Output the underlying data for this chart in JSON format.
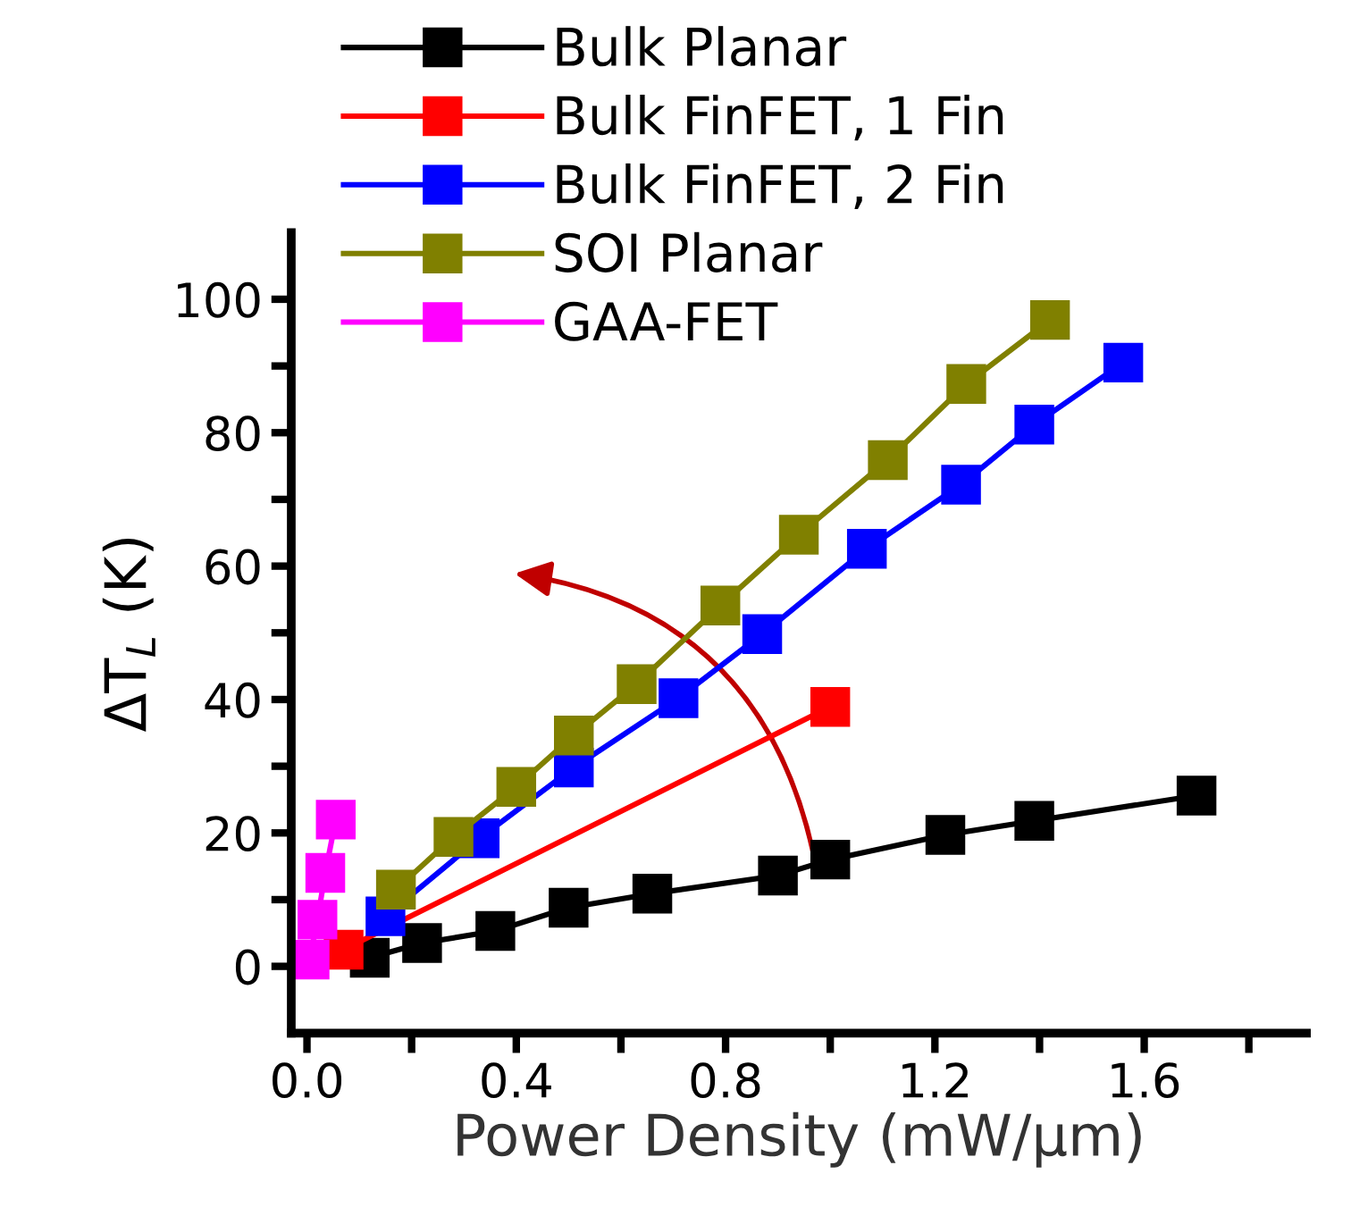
{
  "chart_data": {
    "type": "line",
    "xlabel": "Power Density (mW/μm)",
    "ylabel": "ΔT$_{L}$ (K)",
    "xlim": [
      -0.03,
      1.91
    ],
    "ylim": [
      -10,
      110
    ],
    "xticks": [
      "0.0",
      {
        "value": 0.2,
        "label": null
      },
      0.4,
      {
        "value": 0.6,
        "label": null
      },
      0.8,
      {
        "value": 1.0,
        "label": null
      },
      1.2,
      {
        "value": 1.4,
        "label": null
      },
      1.6,
      {
        "value": 1.8,
        "label": null
      }
    ],
    "yticks": [
      0,
      {
        "value": 10,
        "label": null
      },
      20,
      {
        "value": 30,
        "label": null
      },
      40,
      {
        "value": 50,
        "label": null
      },
      60,
      {
        "value": 70,
        "label": null
      },
      80,
      {
        "value": 90,
        "label": null
      },
      100
    ],
    "marker": "square",
    "line_style": "solid",
    "grid": false,
    "legend": "top left",
    "series": [
      {
        "name": "Bulk Planar",
        "color": "#000000",
        "x": [
          0.12,
          0.22,
          0.36,
          0.5,
          0.66,
          0.9,
          1.0,
          1.22,
          1.39,
          1.7
        ],
        "values": [
          1.3,
          3.5,
          5.3,
          8.8,
          10.9,
          13.6,
          16.0,
          19.7,
          21.8,
          25.6
        ]
      },
      {
        "name": "Bulk FinFET, 1 Fin",
        "color": "#ff0000",
        "x": [
          0.07,
          1.0
        ],
        "values": [
          2.5,
          38.9
        ]
      },
      {
        "name": "Bulk FinFET, 2 Fin",
        "color": "#0000ff",
        "x": [
          0.15,
          0.33,
          0.51,
          0.71,
          0.87,
          1.07,
          1.25,
          1.39,
          1.56
        ],
        "values": [
          7.5,
          19.2,
          29.8,
          40.2,
          49.8,
          62.6,
          72.2,
          81.2,
          90.5
        ]
      },
      {
        "name": "SOI Planar",
        "color": "#808000",
        "x": [
          0.17,
          0.28,
          0.4,
          0.51,
          0.63,
          0.79,
          0.94,
          1.11,
          1.26,
          1.42
        ],
        "values": [
          11.5,
          19.4,
          26.9,
          34.6,
          42.3,
          54.1,
          64.7,
          75.9,
          87.3,
          96.9
        ]
      },
      {
        "name": "GAA-FET",
        "color": "#ff00ff",
        "x": [
          0.005,
          0.02,
          0.035,
          0.055
        ],
        "values": [
          1,
          7,
          14,
          22
        ]
      }
    ]
  }
}
